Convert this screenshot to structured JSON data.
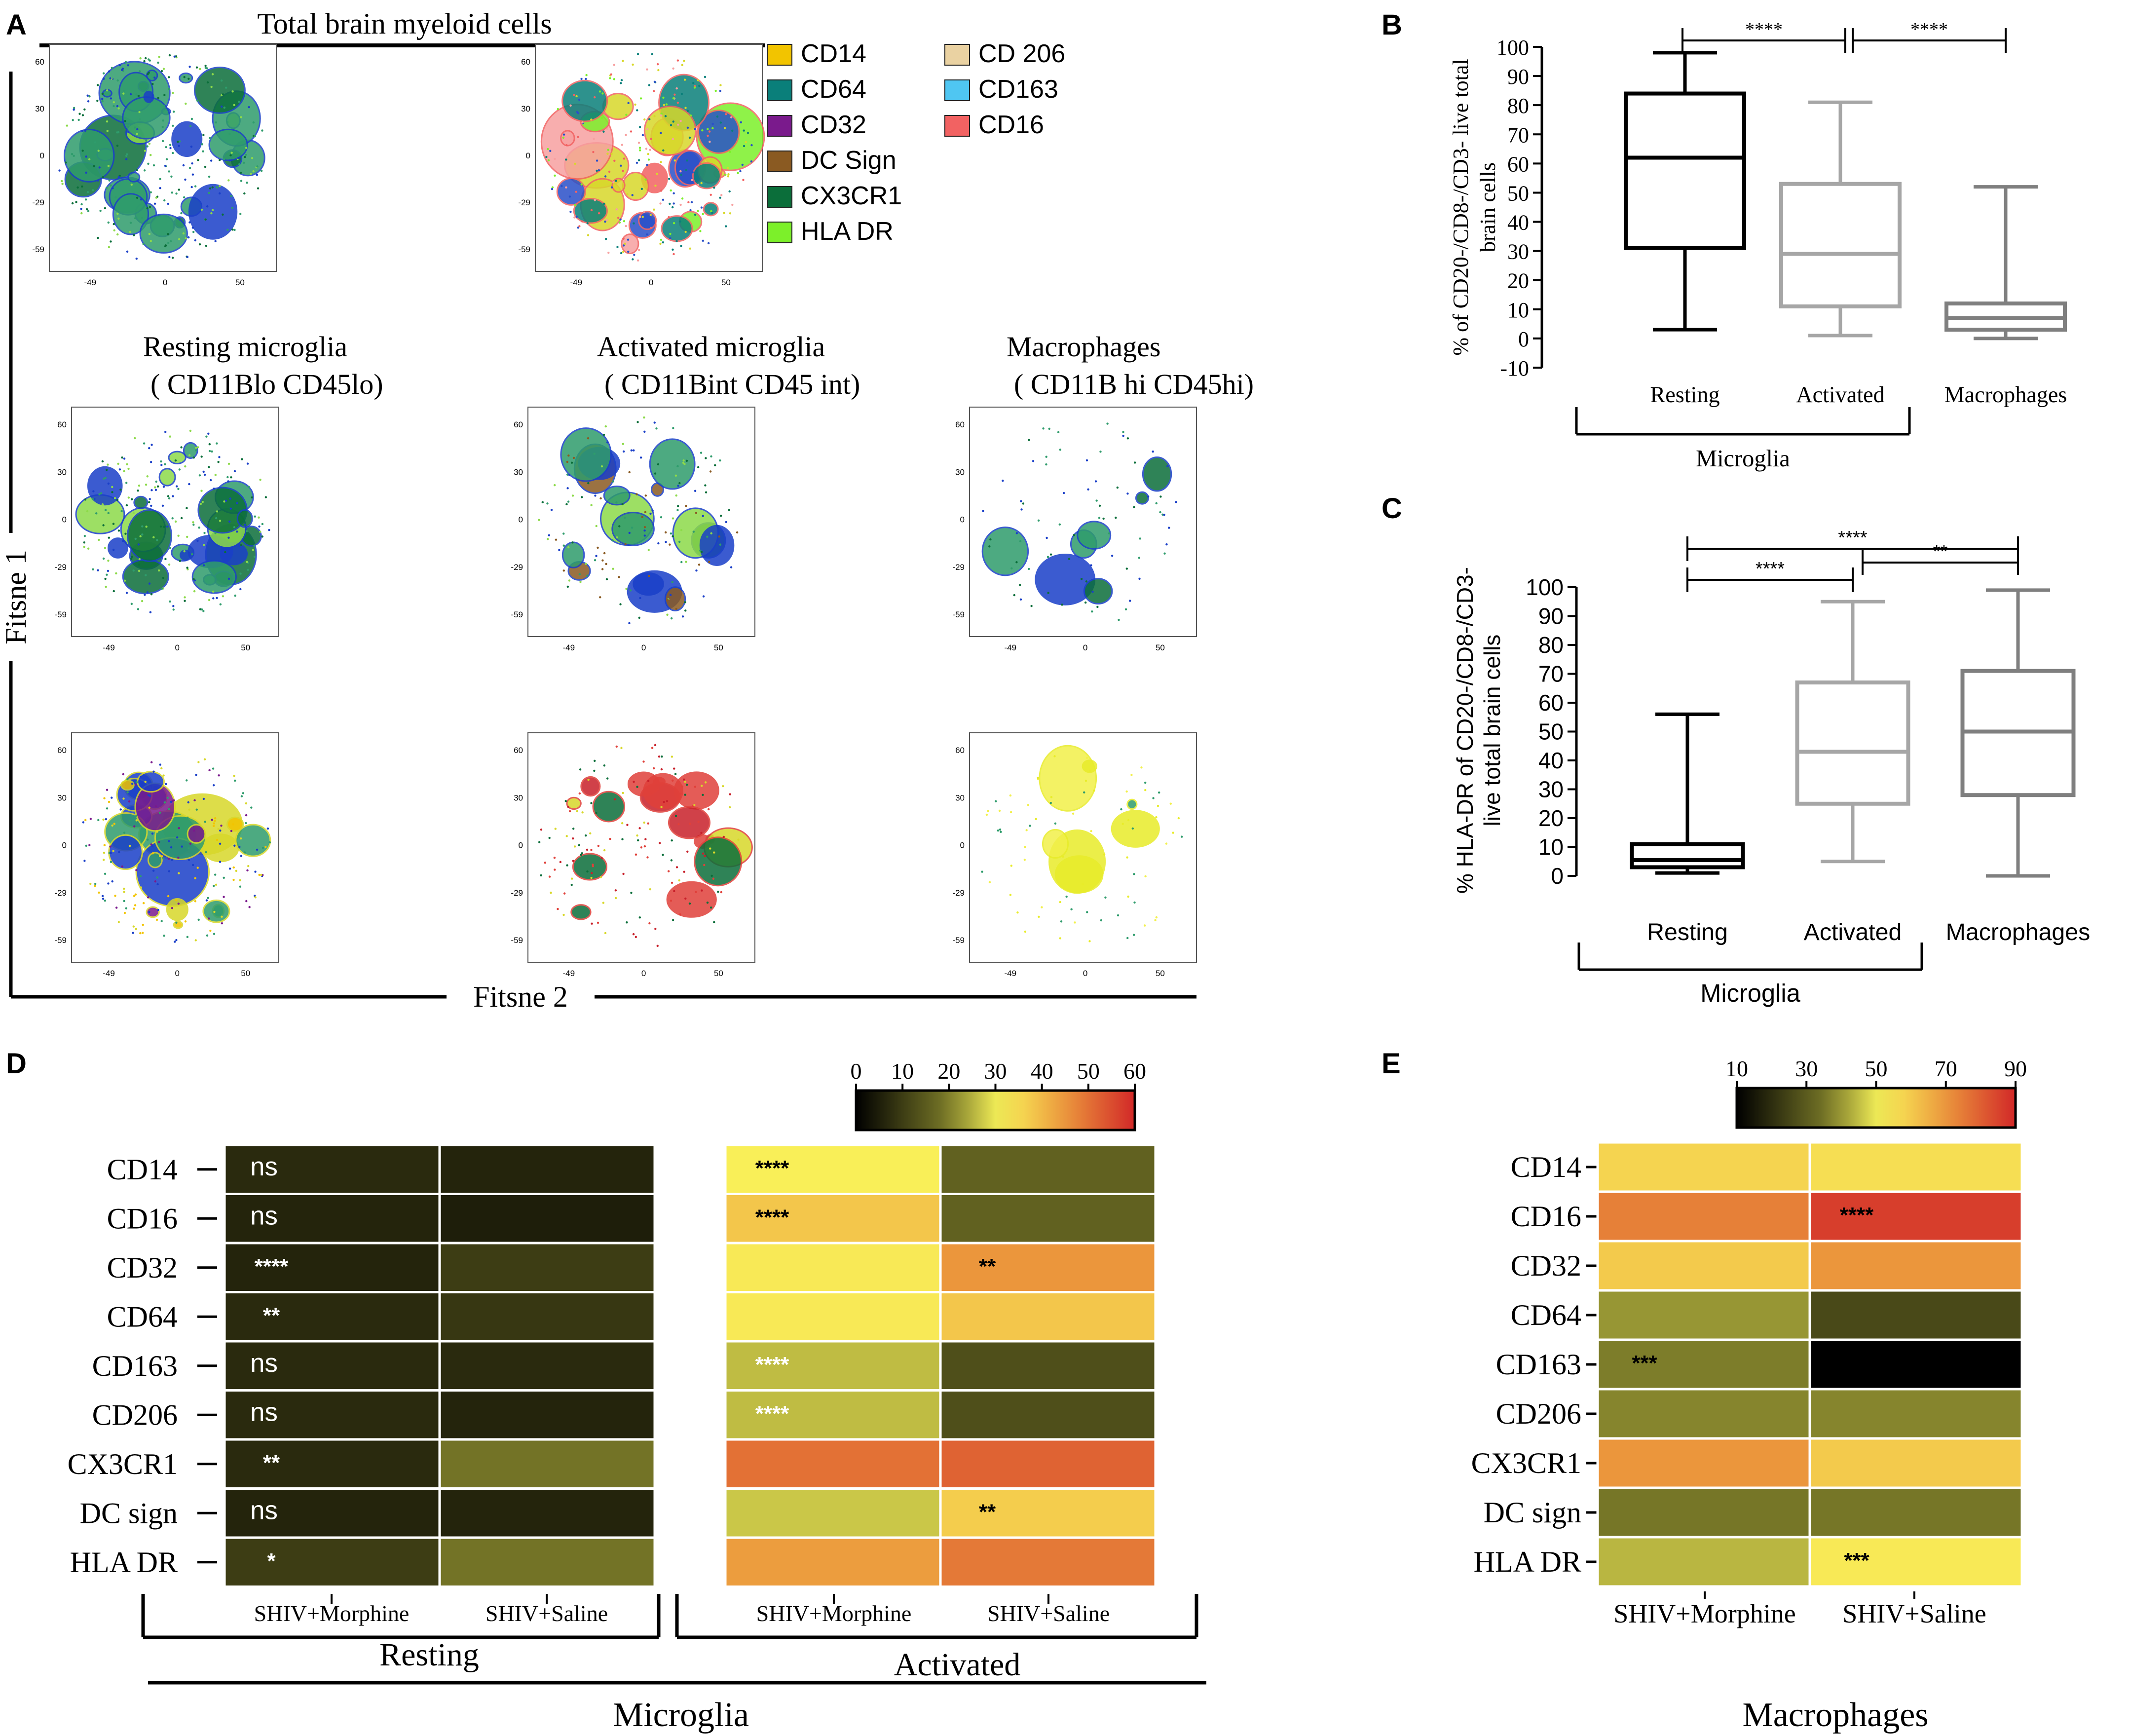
{
  "panel_letters": {
    "A": "A",
    "B": "B",
    "C": "C",
    "D": "D",
    "E": "E"
  },
  "panel_a": {
    "title": "Total brain myeloid cells",
    "legend": [
      {
        "label": "CD14",
        "color": "#f2c400"
      },
      {
        "label": "CD64",
        "color": "#0a7f7a"
      },
      {
        "label": "CD32",
        "color": "#7a1a8c"
      },
      {
        "label": "DC Sign",
        "color": "#8a5a22"
      },
      {
        "label": "CX3CR1",
        "color": "#0b6e3a"
      },
      {
        "label": "HLA DR",
        "color": "#7cf02a"
      },
      {
        "label": "CD 206",
        "color": "#ead2a2"
      },
      {
        "label": "CD163",
        "color": "#4fc6f2"
      },
      {
        "label": "CD16",
        "color": "#f26262"
      }
    ],
    "subtitles": [
      {
        "line1": "Resting microglia",
        "line2": "( CD11Blo CD45lo)"
      },
      {
        "line1": "Activated microglia",
        "line2": "( CD11Bint CD45 int)"
      },
      {
        "line1": "Macrophages",
        "line2": "( CD11B hi CD45hi)"
      }
    ],
    "x_axis": "Fitsne 2",
    "y_axis": "Fitsne 1",
    "x_ticks": [
      "-49",
      "0",
      "50"
    ],
    "y_ticks": [
      "60",
      "30",
      "0",
      "-29",
      "-59"
    ]
  },
  "chart_data": [
    {
      "id": "B",
      "type": "box",
      "ylabel_lines": [
        "% of CD20-/CD8-/CD3- live total",
        "brain cells"
      ],
      "ylim": [
        -10,
        100
      ],
      "yticks": [
        -10,
        0,
        10,
        20,
        30,
        40,
        50,
        60,
        70,
        80,
        90,
        100
      ],
      "tick_labels": [
        "-10",
        "0",
        "10",
        "20",
        "30",
        "40",
        "50",
        "60",
        "70",
        "80",
        "90",
        "100"
      ],
      "categories": [
        "Resting",
        "Activated",
        "Macrophages"
      ],
      "group_label": "Microglia",
      "boxes": [
        {
          "category": "Resting",
          "min": 3,
          "q1": 31,
          "median": 62,
          "q3": 84,
          "max": 98,
          "color": "#000000"
        },
        {
          "category": "Activated",
          "min": 1,
          "q1": 11,
          "median": 29,
          "q3": 53,
          "max": 81,
          "color": "#a6a6a6"
        },
        {
          "category": "Macrophages",
          "min": 0,
          "q1": 3,
          "median": 7,
          "q3": 12,
          "max": 52,
          "color": "#7f7f7f"
        }
      ],
      "significance": [
        {
          "from": "Resting",
          "to": "Activated",
          "label": "****"
        },
        {
          "from": "Activated",
          "to": "Macrophages",
          "label": "****"
        }
      ]
    },
    {
      "id": "C",
      "type": "box",
      "ylabel_lines": [
        "% HLA-DR of CD20-/CD8-/CD3-",
        "live total brain cells"
      ],
      "ylim": [
        0,
        100
      ],
      "yticks": [
        0,
        10,
        20,
        30,
        40,
        50,
        60,
        70,
        80,
        90,
        100
      ],
      "tick_labels": [
        "0",
        "10",
        "20",
        "30",
        "40",
        "50",
        "60",
        "70",
        "80",
        "90",
        "100"
      ],
      "categories": [
        "Resting",
        "Activated",
        "Macrophages"
      ],
      "group_label": "Microglia",
      "boxes": [
        {
          "category": "Resting",
          "min": 1,
          "q1": 3,
          "median": 5.5,
          "q3": 11,
          "max": 56,
          "color": "#000000"
        },
        {
          "category": "Activated",
          "min": 5,
          "q1": 25,
          "median": 43,
          "q3": 67,
          "max": 95,
          "color": "#a6a6a6"
        },
        {
          "category": "Macrophages",
          "min": 0,
          "q1": 28,
          "median": 50,
          "q3": 71,
          "max": 99,
          "color": "#7f7f7f"
        }
      ],
      "significance": [
        {
          "from": "Resting",
          "to": "Activated",
          "label": "****"
        },
        {
          "from": "Activated",
          "to": "Macrophages",
          "label": "**"
        },
        {
          "from": "Resting",
          "to": "Macrophages",
          "label": "****"
        }
      ]
    },
    {
      "id": "D",
      "type": "heatmap",
      "rows": [
        "CD14",
        "CD16",
        "CD32",
        "CD64",
        "CD163",
        "CD206",
        "CX3CR1",
        "DC sign",
        "HLA DR"
      ],
      "columns": [
        "SHIV+Morphine",
        "SHIV+Saline",
        "SHIV+Morphine",
        "SHIV+Saline"
      ],
      "groups": [
        {
          "label": "Resting",
          "columns": [
            0,
            1
          ]
        },
        {
          "label": "Activated",
          "columns": [
            2,
            3
          ]
        }
      ],
      "supergroup": "Microglia",
      "scale": {
        "min": 0,
        "max": 60,
        "ticks": [
          "0",
          "10",
          "20",
          "30",
          "40",
          "50",
          "60"
        ]
      },
      "values": [
        [
          7,
          6,
          32,
          16
        ],
        [
          6,
          5,
          38,
          16
        ],
        [
          6,
          10,
          33,
          45
        ],
        [
          7,
          9,
          33,
          38
        ],
        [
          7,
          7,
          26,
          13
        ],
        [
          7,
          6,
          26,
          13
        ],
        [
          7,
          19,
          50,
          52
        ],
        [
          6,
          6,
          27,
          37
        ],
        [
          10,
          19,
          44,
          49
        ]
      ],
      "annotations": [
        [
          "ns",
          "",
          "****",
          ""
        ],
        [
          "ns",
          "",
          "****",
          ""
        ],
        [
          "****",
          "",
          "",
          "**"
        ],
        [
          "**",
          "",
          "",
          ""
        ],
        [
          "ns",
          "",
          "****",
          ""
        ],
        [
          "ns",
          "",
          "****",
          ""
        ],
        [
          "**",
          "",
          "",
          ""
        ],
        [
          "ns",
          "",
          "",
          "**"
        ],
        [
          "*",
          "",
          "",
          ""
        ]
      ]
    },
    {
      "id": "E",
      "type": "heatmap",
      "rows": [
        "CD14",
        "CD16",
        "CD32",
        "CD64",
        "CD163",
        "CD206",
        "CX3CR1",
        "DC sign",
        "HLA DR"
      ],
      "columns": [
        "SHIV+Morphine",
        "SHIV+Saline"
      ],
      "supergroup": "Macrophages",
      "scale": {
        "min": 10,
        "max": 90,
        "ticks": [
          "10",
          "30",
          "50",
          "70",
          "90"
        ]
      },
      "values": [
        [
          58,
          56
        ],
        [
          74,
          86
        ],
        [
          60,
          70
        ],
        [
          40,
          26
        ],
        [
          37,
          10
        ],
        [
          38,
          38
        ],
        [
          70,
          60
        ],
        [
          36,
          36
        ],
        [
          44,
          54
        ]
      ],
      "annotations": [
        [
          "",
          ""
        ],
        [
          "",
          "****"
        ],
        [
          "",
          ""
        ],
        [
          "",
          ""
        ],
        [
          "***",
          ""
        ],
        [
          "",
          ""
        ],
        [
          "",
          ""
        ],
        [
          "",
          ""
        ],
        [
          "",
          "***"
        ]
      ]
    }
  ]
}
